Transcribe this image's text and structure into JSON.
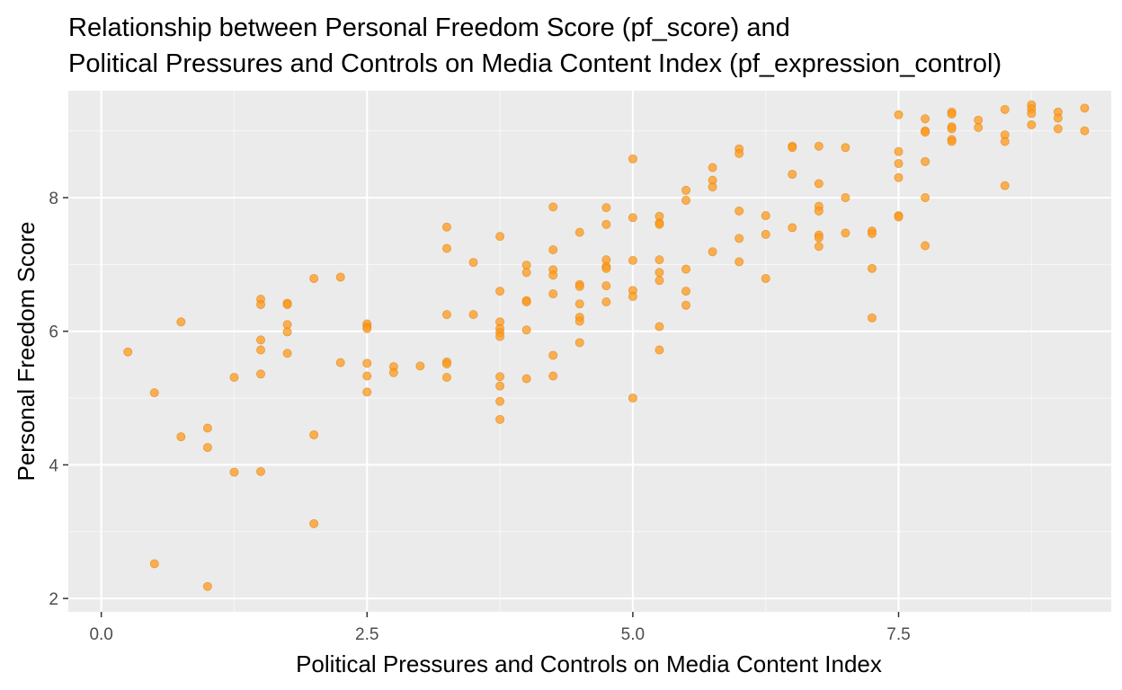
{
  "chart_data": {
    "type": "scatter",
    "title": "Relationship between Personal Freedom Score (pf_score) and",
    "subtitle": "Political Pressures and Controls on Media Content Index (pf_expression_control)",
    "xlabel": "Political Pressures and Controls on Media Content Index",
    "ylabel": "Personal Freedom Score",
    "xlim": [
      -0.31,
      9.5
    ],
    "ylim": [
      1.8,
      9.6
    ],
    "x_ticks": [
      0,
      2.5,
      5,
      7.5
    ],
    "x_tick_labels": [
      "0.0",
      "2.5",
      "5.0",
      "7.5"
    ],
    "y_ticks": [
      2,
      4,
      6,
      8
    ],
    "y_tick_labels": [
      "2",
      "4",
      "6",
      "8"
    ],
    "grid": true,
    "legend": "none",
    "colors": {
      "panel_background": "#ebebeb",
      "grid_major": "#ffffff",
      "point_fill": "#ff9a1a",
      "point_stroke": "#d97e0c",
      "title": "#000000",
      "tick_label": "#4d4d4d"
    },
    "points": [
      [
        0.25,
        5.69
      ],
      [
        0.5,
        5.08
      ],
      [
        0.5,
        2.52
      ],
      [
        0.75,
        6.14
      ],
      [
        0.75,
        4.42
      ],
      [
        1.0,
        4.55
      ],
      [
        1.0,
        4.26
      ],
      [
        1.0,
        2.18
      ],
      [
        1.25,
        5.31
      ],
      [
        1.25,
        3.89
      ],
      [
        1.5,
        6.48
      ],
      [
        1.5,
        6.4
      ],
      [
        1.5,
        5.87
      ],
      [
        1.5,
        5.72
      ],
      [
        1.5,
        5.36
      ],
      [
        1.5,
        3.9
      ],
      [
        1.75,
        6.42
      ],
      [
        1.75,
        6.4
      ],
      [
        1.75,
        6.1
      ],
      [
        1.75,
        5.99
      ],
      [
        1.75,
        5.67
      ],
      [
        2.0,
        6.79
      ],
      [
        2.0,
        4.45
      ],
      [
        2.0,
        3.12
      ],
      [
        2.25,
        6.81
      ],
      [
        2.25,
        5.53
      ],
      [
        2.5,
        6.11
      ],
      [
        2.5,
        6.07
      ],
      [
        2.5,
        6.04
      ],
      [
        2.5,
        5.52
      ],
      [
        2.5,
        5.33
      ],
      [
        2.5,
        5.09
      ],
      [
        2.75,
        5.47
      ],
      [
        2.75,
        5.38
      ],
      [
        3.0,
        5.48
      ],
      [
        3.25,
        7.56
      ],
      [
        3.25,
        7.24
      ],
      [
        3.25,
        6.25
      ],
      [
        3.25,
        5.54
      ],
      [
        3.25,
        5.51
      ],
      [
        3.25,
        5.31
      ],
      [
        3.5,
        7.03
      ],
      [
        3.5,
        6.25
      ],
      [
        3.75,
        7.42
      ],
      [
        3.75,
        6.6
      ],
      [
        3.75,
        6.14
      ],
      [
        3.75,
        6.04
      ],
      [
        3.75,
        5.98
      ],
      [
        3.75,
        5.92
      ],
      [
        3.75,
        5.32
      ],
      [
        3.75,
        5.18
      ],
      [
        3.75,
        4.95
      ],
      [
        3.75,
        4.68
      ],
      [
        4.0,
        6.99
      ],
      [
        4.0,
        6.88
      ],
      [
        4.0,
        6.46
      ],
      [
        4.0,
        6.44
      ],
      [
        4.0,
        6.02
      ],
      [
        4.0,
        5.29
      ],
      [
        4.25,
        7.86
      ],
      [
        4.25,
        7.22
      ],
      [
        4.25,
        6.92
      ],
      [
        4.25,
        6.84
      ],
      [
        4.25,
        6.56
      ],
      [
        4.25,
        5.64
      ],
      [
        4.25,
        5.33
      ],
      [
        4.5,
        7.48
      ],
      [
        4.5,
        6.7
      ],
      [
        4.5,
        6.67
      ],
      [
        4.5,
        6.41
      ],
      [
        4.5,
        6.21
      ],
      [
        4.5,
        6.15
      ],
      [
        4.5,
        5.83
      ],
      [
        4.75,
        7.85
      ],
      [
        4.75,
        7.6
      ],
      [
        4.75,
        7.07
      ],
      [
        4.75,
        6.97
      ],
      [
        4.75,
        6.94
      ],
      [
        4.75,
        6.68
      ],
      [
        4.75,
        6.44
      ],
      [
        5.0,
        8.58
      ],
      [
        5.0,
        7.7
      ],
      [
        5.0,
        7.06
      ],
      [
        5.0,
        6.61
      ],
      [
        5.0,
        6.52
      ],
      [
        5.0,
        5.0
      ],
      [
        5.25,
        7.72
      ],
      [
        5.25,
        7.62
      ],
      [
        5.25,
        7.6
      ],
      [
        5.25,
        7.07
      ],
      [
        5.25,
        6.88
      ],
      [
        5.25,
        6.76
      ],
      [
        5.25,
        6.07
      ],
      [
        5.25,
        5.72
      ],
      [
        5.5,
        8.11
      ],
      [
        5.5,
        7.96
      ],
      [
        5.5,
        6.93
      ],
      [
        5.5,
        6.6
      ],
      [
        5.5,
        6.39
      ],
      [
        5.75,
        8.45
      ],
      [
        5.75,
        8.26
      ],
      [
        5.75,
        8.16
      ],
      [
        5.75,
        7.19
      ],
      [
        6.0,
        8.73
      ],
      [
        6.0,
        8.66
      ],
      [
        6.0,
        7.8
      ],
      [
        6.0,
        7.39
      ],
      [
        6.0,
        7.04
      ],
      [
        6.25,
        7.73
      ],
      [
        6.25,
        7.45
      ],
      [
        6.25,
        6.79
      ],
      [
        6.5,
        8.77
      ],
      [
        6.5,
        8.75
      ],
      [
        6.5,
        8.35
      ],
      [
        6.5,
        7.55
      ],
      [
        6.75,
        8.77
      ],
      [
        6.75,
        8.21
      ],
      [
        6.75,
        7.87
      ],
      [
        6.75,
        7.8
      ],
      [
        6.75,
        7.44
      ],
      [
        6.75,
        7.4
      ],
      [
        6.75,
        7.27
      ],
      [
        7.0,
        8.75
      ],
      [
        7.0,
        8.0
      ],
      [
        7.0,
        7.47
      ],
      [
        7.25,
        7.5
      ],
      [
        7.25,
        7.46
      ],
      [
        7.25,
        6.94
      ],
      [
        7.25,
        6.2
      ],
      [
        7.5,
        9.24
      ],
      [
        7.5,
        8.69
      ],
      [
        7.5,
        8.51
      ],
      [
        7.5,
        8.3
      ],
      [
        7.5,
        7.73
      ],
      [
        7.5,
        7.71
      ],
      [
        7.75,
        9.18
      ],
      [
        7.75,
        9.0
      ],
      [
        7.75,
        8.98
      ],
      [
        7.75,
        8.54
      ],
      [
        7.75,
        8.0
      ],
      [
        7.75,
        7.28
      ],
      [
        8.0,
        9.28
      ],
      [
        8.0,
        9.25
      ],
      [
        8.0,
        9.06
      ],
      [
        8.0,
        9.03
      ],
      [
        8.0,
        8.87
      ],
      [
        8.0,
        8.84
      ],
      [
        8.25,
        9.16
      ],
      [
        8.25,
        9.05
      ],
      [
        8.5,
        9.32
      ],
      [
        8.5,
        8.94
      ],
      [
        8.5,
        8.84
      ],
      [
        8.5,
        8.18
      ],
      [
        8.75,
        9.39
      ],
      [
        8.75,
        9.33
      ],
      [
        8.75,
        9.26
      ],
      [
        8.75,
        9.09
      ],
      [
        9.0,
        9.28
      ],
      [
        9.0,
        9.19
      ],
      [
        9.0,
        9.03
      ],
      [
        9.25,
        9.34
      ],
      [
        9.25,
        9.0
      ]
    ]
  }
}
